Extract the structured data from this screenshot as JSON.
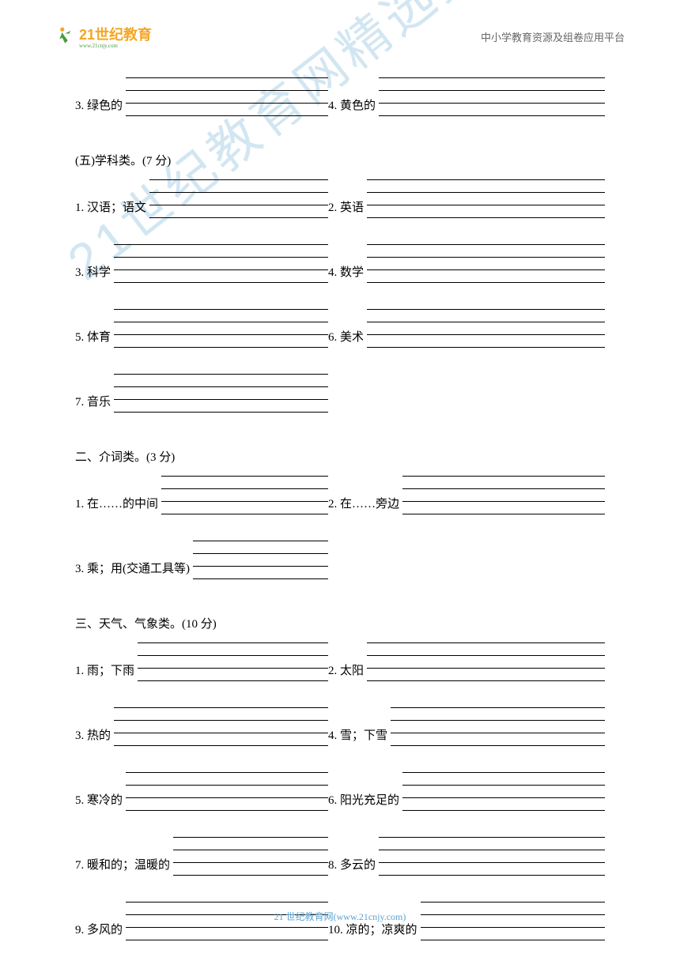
{
  "header": {
    "logo_text": "21世纪教育",
    "logo_sub": "www.21cnjy.com",
    "right_text": "中小学教育资源及组卷应用平台"
  },
  "watermark": "21世纪教育网精选资料",
  "footer": "21 世纪教育网(www.21cnjy.com)",
  "colors": {
    "logo_orange": "#f5a623",
    "logo_green": "#4a9b3e",
    "watermark": "rgba(95,165,210,0.28)",
    "footer": "#5aa3d0"
  },
  "rows": [
    {
      "type": "pair",
      "left": "3. 绿色的",
      "right": "4. 黄色的"
    },
    {
      "type": "section",
      "text": "(五)学科类。(7 分)"
    },
    {
      "type": "pair",
      "left": "1. 汉语；语文",
      "right": "2. 英语"
    },
    {
      "type": "pair",
      "left": "3. 科学",
      "right": "4. 数学"
    },
    {
      "type": "pair",
      "left": "5. 体育",
      "right": "6. 美术"
    },
    {
      "type": "single",
      "left": "7. 音乐"
    },
    {
      "type": "section",
      "text": "二、介词类。(3 分)"
    },
    {
      "type": "pair",
      "left": "1. 在……的中间",
      "right": "2. 在……旁边"
    },
    {
      "type": "single",
      "left": "3. 乘；用(交通工具等)"
    },
    {
      "type": "section",
      "text": "三、天气、气象类。(10 分)"
    },
    {
      "type": "pair",
      "left": "1. 雨；下雨",
      "right": "2. 太阳"
    },
    {
      "type": "pair",
      "left": "3. 热的",
      "right": "4. 雪；下雪"
    },
    {
      "type": "pair",
      "left": "5. 寒冷的",
      "right": "6. 阳光充足的"
    },
    {
      "type": "pair",
      "left": "7. 暖和的；温暖的",
      "right": "8. 多云的"
    },
    {
      "type": "pair",
      "left": "9. 多风的",
      "right": "10. 凉的；凉爽的"
    }
  ]
}
